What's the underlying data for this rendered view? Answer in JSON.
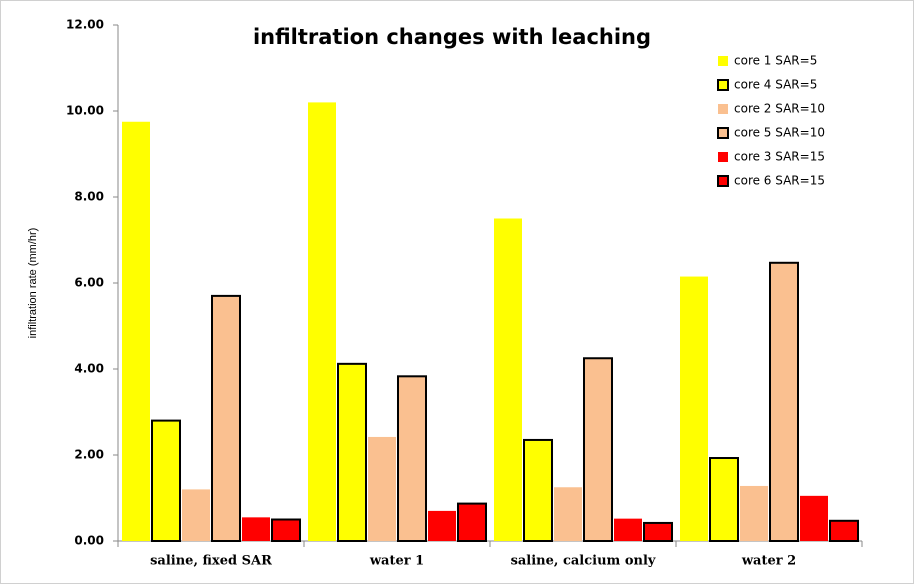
{
  "chart_data": {
    "type": "bar",
    "title": "infiltration changes with leaching",
    "y_label": "infiltration rate (mm/hr)",
    "categories": [
      "saline, fixed SAR",
      "water 1",
      "saline, calcium only",
      "water 2"
    ],
    "series": [
      {
        "name": "core 1 SAR=5",
        "color": "#ffff00",
        "edgecolor": "none",
        "values": [
          9.75,
          10.2,
          7.5,
          6.15
        ]
      },
      {
        "name": "core 4 SAR=5",
        "color": "#ffff00",
        "edgecolor": "#000000",
        "values": [
          2.8,
          4.12,
          2.35,
          1.93
        ]
      },
      {
        "name": "core 2 SAR=10",
        "color": "#fac090",
        "edgecolor": "none",
        "values": [
          1.2,
          2.42,
          1.25,
          1.28
        ]
      },
      {
        "name": "core 5 SAR=10",
        "color": "#fac090",
        "edgecolor": "#000000",
        "values": [
          5.7,
          3.83,
          4.25,
          6.47
        ]
      },
      {
        "name": "core 3 SAR=15",
        "color": "#ff0000",
        "edgecolor": "none",
        "values": [
          0.55,
          0.7,
          0.52,
          1.05
        ]
      },
      {
        "name": "core 6 SAR=15",
        "color": "#ff0000",
        "edgecolor": "#000000",
        "values": [
          0.5,
          0.87,
          0.42,
          0.47
        ]
      }
    ],
    "ylim": [
      0,
      12
    ],
    "yticks": [
      {
        "value": 0,
        "label": "0.00"
      },
      {
        "value": 2,
        "label": "2.00"
      },
      {
        "value": 4,
        "label": "4.00"
      },
      {
        "value": 6,
        "label": "6.00"
      },
      {
        "value": 8,
        "label": "8.00"
      },
      {
        "value": 10,
        "label": "10.00"
      },
      {
        "value": 12,
        "label": "12.00"
      }
    ],
    "grid": false,
    "legend": "top-right"
  }
}
